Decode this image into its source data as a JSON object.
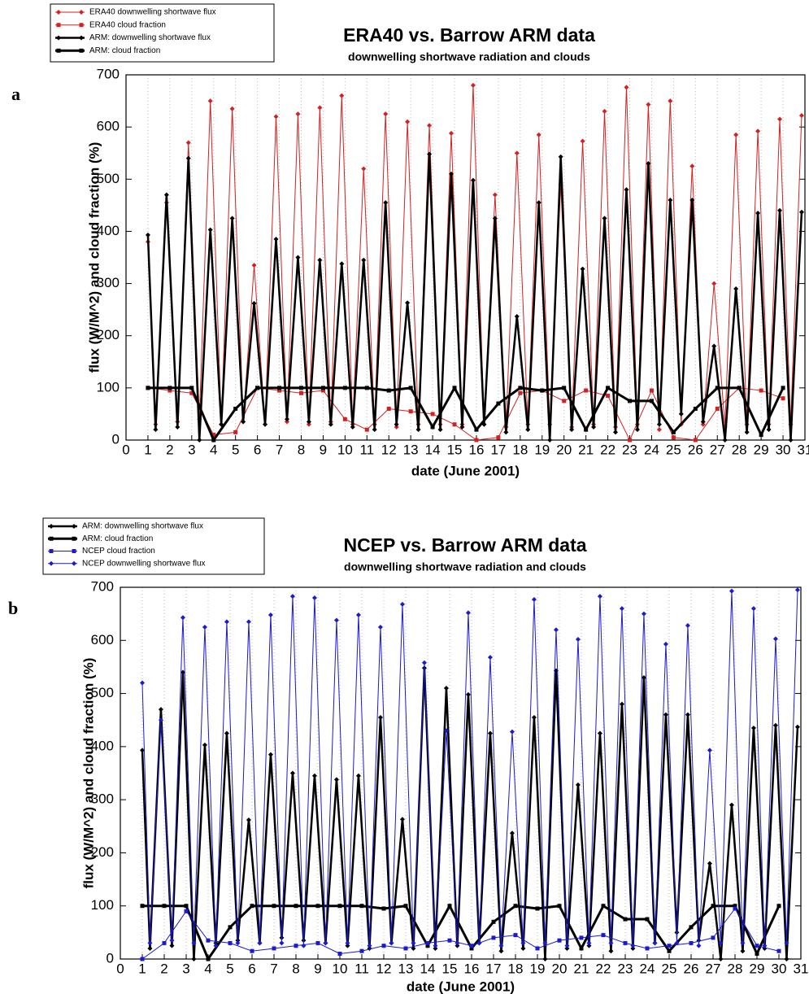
{
  "chart_data": [
    {
      "type": "line",
      "panel": "a",
      "title": "ERA40 vs. Barrow ARM data",
      "subtitle": "downwelling shortwave radiation and clouds",
      "x_label": "date (June 2001)",
      "y_label": "flux (W/M^2) and cloud fraction (%)",
      "xlim": [
        0,
        31
      ],
      "xticks": [
        0,
        1,
        2,
        3,
        4,
        5,
        6,
        7,
        8,
        9,
        10,
        11,
        12,
        13,
        14,
        15,
        16,
        17,
        18,
        19,
        20,
        21,
        22,
        23,
        24,
        25,
        26,
        27,
        28,
        29,
        30,
        31
      ],
      "ylim": [
        0,
        700
      ],
      "yticks": [
        0,
        100,
        200,
        300,
        400,
        500,
        600,
        700
      ],
      "grid": true,
      "series": [
        {
          "name": "ERA40 downwelling shortwave flux",
          "color": "#d42020",
          "marker": "diamond",
          "linewidth": 1,
          "x": [
            1,
            1.35,
            1.85,
            2.35,
            2.85,
            3.35,
            3.85,
            4.35,
            4.85,
            5.35,
            5.85,
            6.35,
            6.85,
            7.35,
            7.85,
            8.35,
            8.85,
            9.35,
            9.85,
            10.35,
            10.85,
            11.35,
            11.85,
            12.35,
            12.85,
            13.35,
            13.85,
            14.35,
            14.85,
            15.35,
            15.85,
            16.35,
            16.85,
            17.35,
            17.85,
            18.35,
            18.85,
            19.35,
            19.85,
            20.35,
            20.85,
            21.35,
            21.85,
            22.35,
            22.85,
            23.35,
            23.85,
            24.35,
            24.85,
            25.35,
            25.85,
            26.35,
            26.85,
            27.35,
            27.85,
            28.35,
            28.85,
            29.35,
            29.85,
            30.35,
            30.85
          ],
          "values": [
            380,
            30,
            455,
            35,
            570,
            40,
            650,
            30,
            635,
            35,
            335,
            30,
            620,
            35,
            625,
            30,
            637,
            35,
            660,
            30,
            520,
            30,
            625,
            25,
            610,
            30,
            603,
            30,
            588,
            30,
            680,
            30,
            470,
            25,
            550,
            30,
            585,
            30,
            490,
            25,
            573,
            30,
            630,
            25,
            676,
            30,
            643,
            20,
            650,
            30,
            525,
            30,
            300,
            25,
            585,
            30,
            592,
            30,
            615,
            30,
            622
          ]
        },
        {
          "name": "ERA40 cloud fraction",
          "color": "#d42020",
          "marker": "square",
          "linewidth": 1,
          "x": [
            1,
            2,
            3,
            4,
            5,
            6,
            7,
            8,
            9,
            10,
            11,
            12,
            13,
            14,
            15,
            16,
            17,
            18,
            19,
            20,
            21,
            22,
            23,
            24,
            25,
            26,
            27,
            28,
            29,
            30
          ],
          "values": [
            100,
            95,
            90,
            10,
            15,
            100,
            95,
            90,
            95,
            40,
            20,
            60,
            55,
            50,
            30,
            0,
            5,
            90,
            95,
            75,
            95,
            85,
            0,
            95,
            5,
            0,
            60,
            100,
            95,
            80
          ]
        },
        {
          "name": "ARM: downwelling shortwave flux",
          "color": "#000000",
          "marker": "diamond",
          "linewidth": 2.5,
          "x": [
            1,
            1.35,
            1.85,
            2.35,
            2.85,
            3.35,
            3.85,
            4.35,
            4.85,
            5.35,
            5.85,
            6.35,
            6.85,
            7.35,
            7.85,
            8.35,
            8.85,
            9.35,
            9.85,
            10.35,
            10.85,
            11.35,
            11.85,
            12.35,
            12.85,
            13.35,
            13.85,
            14.35,
            14.85,
            15.35,
            15.85,
            16.35,
            16.85,
            17.35,
            17.85,
            18.35,
            18.85,
            19.35,
            19.85,
            20.35,
            20.85,
            21.35,
            21.85,
            22.35,
            22.85,
            23.35,
            23.85,
            24.35,
            24.85,
            25.35,
            25.85,
            26.35,
            26.85,
            27.35,
            27.85,
            28.35,
            28.85,
            29.35,
            29.85,
            30.35,
            30.85
          ],
          "values": [
            393,
            20,
            470,
            25,
            540,
            0,
            403,
            30,
            425,
            35,
            262,
            30,
            385,
            40,
            350,
            35,
            345,
            30,
            338,
            25,
            345,
            20,
            455,
            30,
            263,
            20,
            548,
            20,
            510,
            25,
            498,
            30,
            425,
            15,
            237,
            20,
            455,
            0,
            543,
            20,
            328,
            25,
            425,
            15,
            480,
            20,
            530,
            30,
            460,
            50,
            460,
            35,
            180,
            0,
            290,
            15,
            435,
            20,
            440,
            0,
            437
          ]
        },
        {
          "name": "ARM: cloud fraction",
          "color": "#000000",
          "marker": "square",
          "linewidth": 3,
          "x": [
            1,
            2,
            3,
            4,
            5,
            6,
            7,
            8,
            9,
            10,
            11,
            12,
            13,
            14,
            15,
            16,
            17,
            18,
            19,
            20,
            21,
            22,
            23,
            24,
            25,
            26,
            27,
            28,
            29,
            30
          ],
          "values": [
            100,
            100,
            100,
            0,
            60,
            100,
            100,
            100,
            100,
            100,
            100,
            95,
            100,
            25,
            100,
            20,
            70,
            100,
            95,
            100,
            20,
            100,
            75,
            75,
            15,
            60,
            100,
            100,
            10,
            100
          ]
        }
      ]
    },
    {
      "type": "line",
      "panel": "b",
      "title": "NCEP vs. Barrow ARM data",
      "subtitle": "downwelling shortwave radiation and clouds",
      "x_label": "date (June 2001)",
      "y_label": "flux (W/M^2) and cloud fraction (%)",
      "xlim": [
        0,
        31
      ],
      "xticks": [
        0,
        1,
        2,
        3,
        4,
        5,
        6,
        7,
        8,
        9,
        10,
        11,
        12,
        13,
        14,
        15,
        16,
        17,
        18,
        19,
        20,
        21,
        22,
        23,
        24,
        25,
        26,
        27,
        28,
        29,
        30,
        31
      ],
      "ylim": [
        0,
        700
      ],
      "yticks": [
        0,
        100,
        200,
        300,
        400,
        500,
        600,
        700
      ],
      "grid": true,
      "series": [
        {
          "name": "ARM: downwelling shortwave flux",
          "color": "#000000",
          "marker": "diamond",
          "linewidth": 2.5,
          "x": [
            1,
            1.35,
            1.85,
            2.35,
            2.85,
            3.35,
            3.85,
            4.35,
            4.85,
            5.35,
            5.85,
            6.35,
            6.85,
            7.35,
            7.85,
            8.35,
            8.85,
            9.35,
            9.85,
            10.35,
            10.85,
            11.35,
            11.85,
            12.35,
            12.85,
            13.35,
            13.85,
            14.35,
            14.85,
            15.35,
            15.85,
            16.35,
            16.85,
            17.35,
            17.85,
            18.35,
            18.85,
            19.35,
            19.85,
            20.35,
            20.85,
            21.35,
            21.85,
            22.35,
            22.85,
            23.35,
            23.85,
            24.35,
            24.85,
            25.35,
            25.85,
            26.35,
            26.85,
            27.35,
            27.85,
            28.35,
            28.85,
            29.35,
            29.85,
            30.35,
            30.85
          ],
          "values": [
            393,
            20,
            470,
            25,
            540,
            0,
            403,
            30,
            425,
            35,
            262,
            30,
            385,
            40,
            350,
            35,
            345,
            30,
            338,
            25,
            345,
            20,
            455,
            30,
            263,
            20,
            548,
            20,
            510,
            25,
            498,
            30,
            425,
            15,
            237,
            20,
            455,
            0,
            543,
            20,
            328,
            25,
            425,
            15,
            480,
            20,
            530,
            30,
            460,
            50,
            460,
            35,
            180,
            0,
            290,
            15,
            435,
            20,
            440,
            0,
            437
          ]
        },
        {
          "name": "ARM: cloud fraction",
          "color": "#000000",
          "marker": "square",
          "linewidth": 3,
          "x": [
            1,
            2,
            3,
            4,
            5,
            6,
            7,
            8,
            9,
            10,
            11,
            12,
            13,
            14,
            15,
            16,
            17,
            18,
            19,
            20,
            21,
            22,
            23,
            24,
            25,
            26,
            27,
            28,
            29,
            30
          ],
          "values": [
            100,
            100,
            100,
            0,
            60,
            100,
            100,
            100,
            100,
            100,
            100,
            95,
            100,
            25,
            100,
            20,
            70,
            100,
            95,
            100,
            20,
            100,
            75,
            75,
            15,
            60,
            100,
            100,
            10,
            100
          ]
        },
        {
          "name": "NCEP cloud fraction",
          "color": "#1a1ad0",
          "marker": "square",
          "linewidth": 1,
          "x": [
            1,
            2,
            3,
            4,
            5,
            6,
            7,
            8,
            9,
            10,
            11,
            12,
            13,
            14,
            15,
            16,
            17,
            18,
            19,
            20,
            21,
            22,
            23,
            24,
            25,
            26,
            27,
            28,
            29,
            30
          ],
          "values": [
            0,
            30,
            90,
            35,
            30,
            15,
            20,
            25,
            30,
            10,
            15,
            25,
            20,
            30,
            35,
            25,
            40,
            45,
            20,
            35,
            40,
            45,
            30,
            20,
            25,
            30,
            40,
            95,
            25,
            15
          ]
        },
        {
          "name": "NCEP downwelling shortwave flux",
          "color": "#1a1ad0",
          "marker": "diamond",
          "linewidth": 1,
          "x": [
            1,
            1.35,
            1.85,
            2.35,
            2.85,
            3.35,
            3.85,
            4.35,
            4.85,
            5.35,
            5.85,
            6.35,
            6.85,
            7.35,
            7.85,
            8.35,
            8.85,
            9.35,
            9.85,
            10.35,
            10.85,
            11.35,
            11.85,
            12.35,
            12.85,
            13.35,
            13.85,
            14.35,
            14.85,
            15.35,
            15.85,
            16.35,
            16.85,
            17.35,
            17.85,
            18.35,
            18.85,
            19.35,
            19.85,
            20.35,
            20.85,
            21.35,
            21.85,
            22.35,
            22.85,
            23.35,
            23.85,
            24.35,
            24.85,
            25.35,
            25.85,
            26.35,
            26.85,
            27.35,
            27.85,
            28.35,
            28.85,
            29.35,
            29.85,
            30.35,
            30.85
          ],
          "values": [
            520,
            30,
            450,
            35,
            643,
            30,
            625,
            25,
            635,
            30,
            635,
            30,
            648,
            30,
            683,
            25,
            680,
            30,
            638,
            30,
            648,
            25,
            625,
            30,
            668,
            30,
            558,
            25,
            430,
            30,
            652,
            30,
            568,
            25,
            428,
            30,
            677,
            30,
            620,
            25,
            602,
            30,
            683,
            30,
            660,
            25,
            650,
            30,
            593,
            30,
            628,
            25,
            393,
            30,
            693,
            30,
            660,
            25,
            603,
            30,
            695
          ]
        }
      ]
    }
  ]
}
